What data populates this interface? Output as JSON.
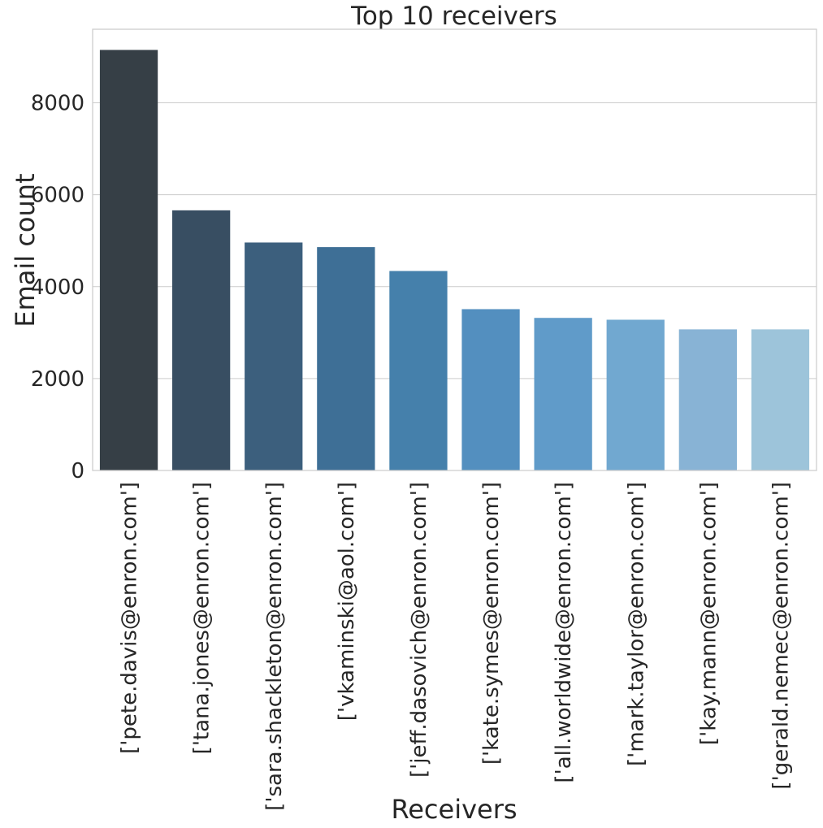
{
  "chart_data": {
    "type": "bar",
    "title": "Top 10 receivers",
    "xlabel": "Receivers",
    "ylabel": "Email count",
    "ylim": [
      0,
      9600
    ],
    "yticks": [
      0,
      2000,
      4000,
      6000,
      8000
    ],
    "ytick_labels": [
      "0",
      "2000",
      "4000",
      "6000",
      "8000"
    ],
    "grid": "horizontal",
    "categories": [
      "['pete.davis@enron.com']",
      "['tana.jones@enron.com']",
      "['sara.shackleton@enron.com']",
      "['vkaminski@aol.com']",
      "['jeff.dasovich@enron.com']",
      "['kate.symes@enron.com']",
      "['all.worldwide@enron.com']",
      "['mark.taylor@enron.com']",
      "['kay.mann@enron.com']",
      "['gerald.nemec@enron.com']"
    ],
    "values": [
      9150,
      5660,
      4960,
      4860,
      4340,
      3510,
      3320,
      3280,
      3070,
      3070
    ],
    "colors": [
      "#363f46",
      "#384e62",
      "#3c5f7d",
      "#3e6f96",
      "#4580ab",
      "#538fbf",
      "#609bc9",
      "#71a8d0",
      "#88b3d5",
      "#9dc4da"
    ]
  }
}
